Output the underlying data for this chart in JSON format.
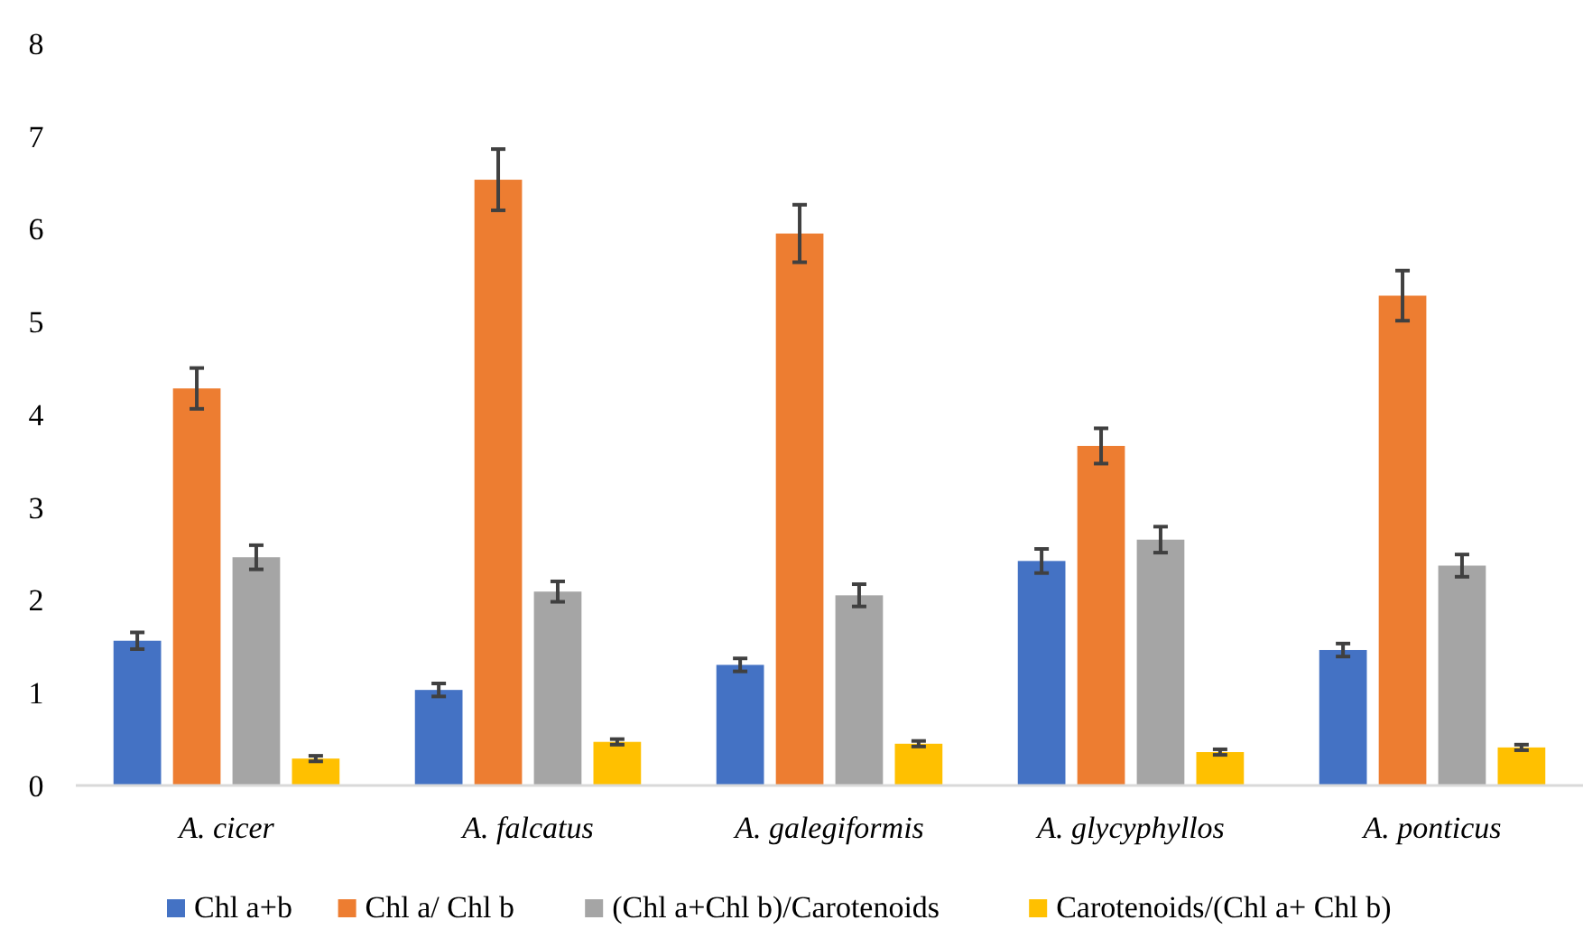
{
  "chart_data": {
    "type": "bar",
    "categories": [
      "A. cicer",
      "A. falcatus",
      "A. galegiformis",
      "A. glycyphyllos",
      "A. ponticus"
    ],
    "series": [
      {
        "name": "Chl a+b",
        "color": "#4472c4",
        "values": [
          1.56,
          1.03,
          1.3,
          2.42,
          1.46
        ],
        "errors": [
          0.09,
          0.07,
          0.07,
          0.13,
          0.07
        ]
      },
      {
        "name": "Chl a/ Chl b",
        "color": "#ed7d31",
        "values": [
          4.28,
          6.53,
          5.95,
          3.66,
          5.28
        ],
        "errors": [
          0.22,
          0.33,
          0.31,
          0.19,
          0.27
        ]
      },
      {
        "name": "(Chl a+Chl b)/Carotenoids",
        "color": "#a5a5a5",
        "values": [
          2.46,
          2.09,
          2.05,
          2.65,
          2.37
        ],
        "errors": [
          0.13,
          0.11,
          0.12,
          0.14,
          0.12
        ]
      },
      {
        "name": "Carotenoids/(Chl a+ Chl b)",
        "color": "#ffc000",
        "values": [
          0.29,
          0.47,
          0.45,
          0.36,
          0.41
        ],
        "errors": [
          0.03,
          0.03,
          0.03,
          0.03,
          0.03
        ]
      }
    ],
    "ylim": [
      0,
      8
    ],
    "yticks": [
      0,
      1,
      2,
      3,
      4,
      5,
      6,
      7,
      8
    ],
    "grid": false,
    "legend": "bottom"
  }
}
